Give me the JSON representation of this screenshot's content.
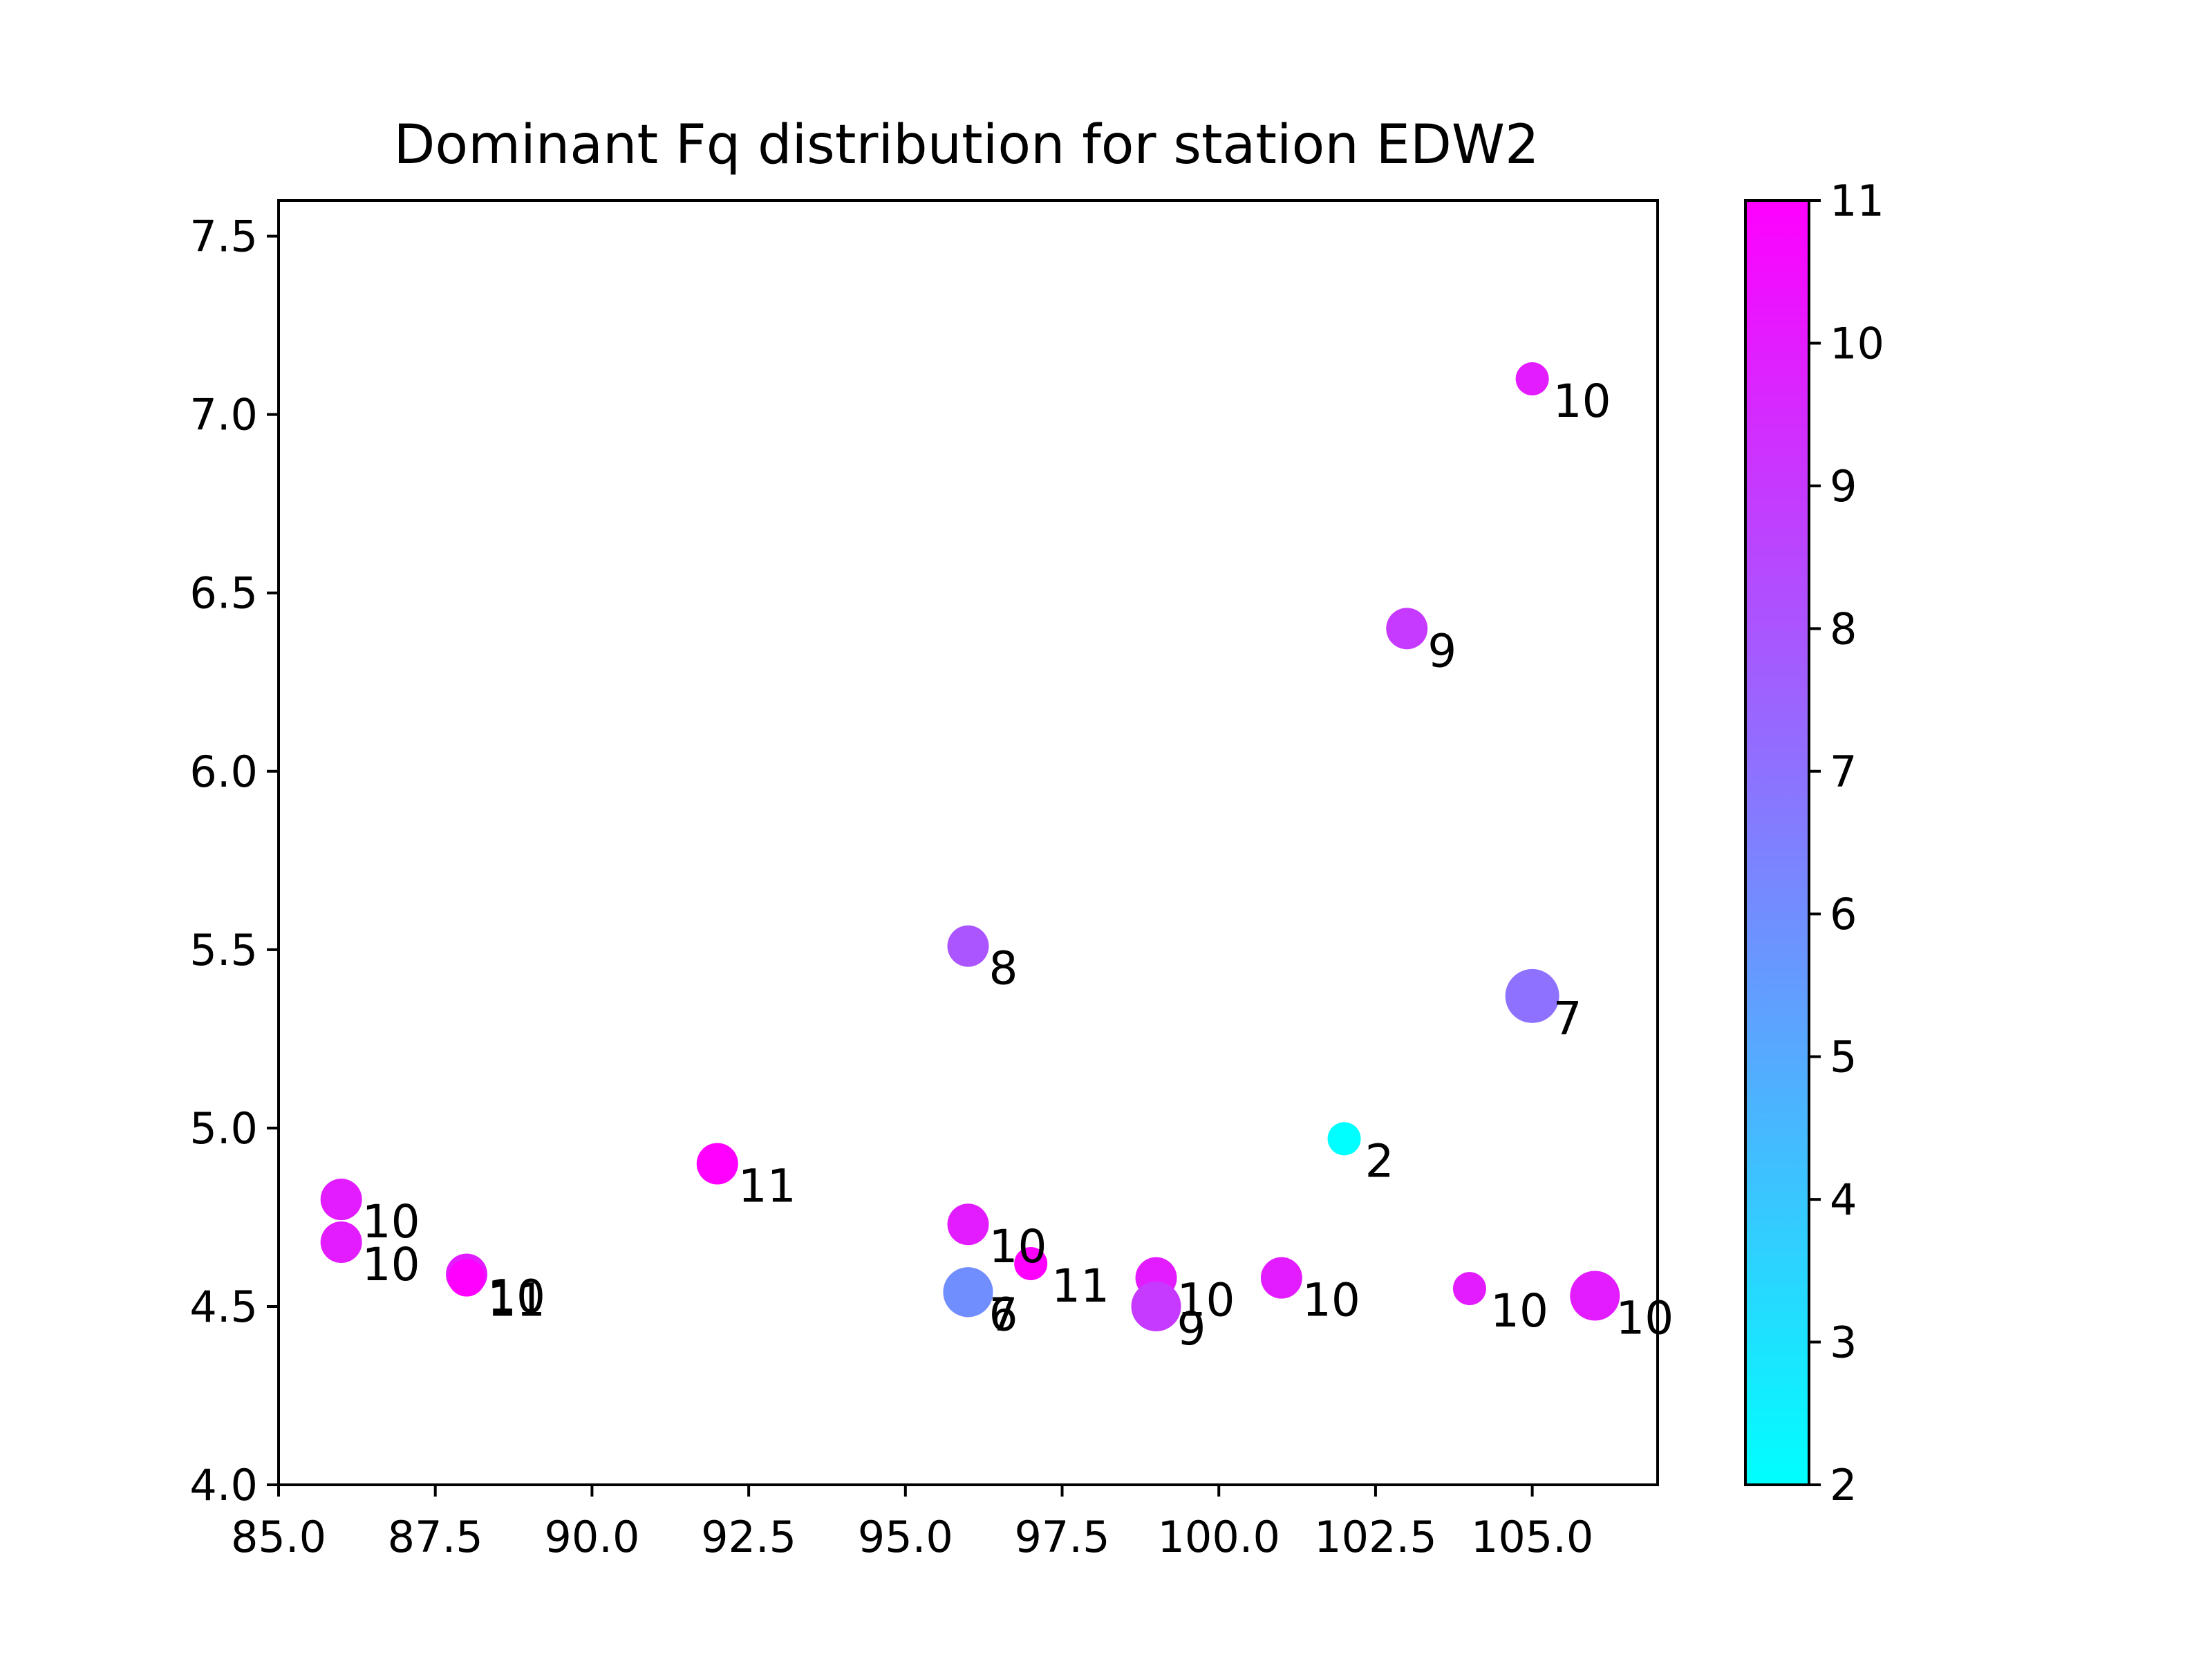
{
  "chart_data": {
    "type": "scatter",
    "title": "Dominant Fq distribution for station EDW2",
    "xlabel": "",
    "ylabel": "",
    "xlim": [
      85.0,
      107.0
    ],
    "ylim": [
      4.0,
      7.6
    ],
    "xticks": [
      85.0,
      87.5,
      90.0,
      92.5,
      95.0,
      97.5,
      100.0,
      102.5,
      105.0
    ],
    "xtick_labels": [
      "85.0",
      "87.5",
      "90.0",
      "92.5",
      "95.0",
      "97.5",
      "100.0",
      "102.5",
      "105.0"
    ],
    "yticks": [
      4.0,
      4.5,
      5.0,
      5.5,
      6.0,
      6.5,
      7.0,
      7.5
    ],
    "ytick_labels": [
      "4.0",
      "4.5",
      "5.0",
      "5.5",
      "6.0",
      "6.5",
      "7.0",
      "7.5"
    ],
    "grid": false,
    "colorbar": {
      "colormap": "cool",
      "range": [
        2,
        11
      ],
      "ticks": [
        2,
        3,
        4,
        5,
        6,
        7,
        8,
        9,
        10,
        11
      ],
      "tick_labels": [
        "2",
        "3",
        "4",
        "5",
        "6",
        "7",
        "8",
        "9",
        "10",
        "11"
      ],
      "low_color": "#00ffff",
      "high_color": "#ff00ff"
    },
    "points": [
      {
        "x": 105.0,
        "y": 7.1,
        "value": 10,
        "label": "10",
        "size": 0.8
      },
      {
        "x": 103.0,
        "y": 6.4,
        "value": 9,
        "label": "9",
        "size": 1.0
      },
      {
        "x": 96.0,
        "y": 5.51,
        "value": 8,
        "label": "8",
        "size": 1.0
      },
      {
        "x": 105.0,
        "y": 5.37,
        "value": 7,
        "label": "7",
        "size": 1.3
      },
      {
        "x": 102.0,
        "y": 4.97,
        "value": 2,
        "label": "2",
        "size": 0.8
      },
      {
        "x": 92.0,
        "y": 4.9,
        "value": 11,
        "label": "11",
        "size": 1.0
      },
      {
        "x": 86.0,
        "y": 4.8,
        "value": 10,
        "label": "10",
        "size": 1.0
      },
      {
        "x": 86.0,
        "y": 4.68,
        "value": 10,
        "label": "10",
        "size": 1.0
      },
      {
        "x": 96.0,
        "y": 4.73,
        "value": 10,
        "label": "10",
        "size": 1.0
      },
      {
        "x": 97.0,
        "y": 4.62,
        "value": 11,
        "label": "11",
        "size": 0.8
      },
      {
        "x": 88.0,
        "y": 4.59,
        "value": 10,
        "label": "10",
        "size": 1.0
      },
      {
        "x": 88.0,
        "y": 4.58,
        "value": 11,
        "label": "11",
        "size": 0.9
      },
      {
        "x": 96.0,
        "y": 4.54,
        "value": 7,
        "label": "7",
        "size": 1.2
      },
      {
        "x": 96.0,
        "y": 4.54,
        "value": 6,
        "label": "6",
        "size": 1.2
      },
      {
        "x": 99.0,
        "y": 4.58,
        "value": 10,
        "label": "10",
        "size": 1.0
      },
      {
        "x": 99.0,
        "y": 4.5,
        "value": 9,
        "label": "9",
        "size": 1.2
      },
      {
        "x": 101.0,
        "y": 4.58,
        "value": 10,
        "label": "10",
        "size": 1.0
      },
      {
        "x": 104.0,
        "y": 4.55,
        "value": 10,
        "label": "10",
        "size": 0.8
      },
      {
        "x": 106.0,
        "y": 4.53,
        "value": 10,
        "label": "10",
        "size": 1.2
      }
    ]
  }
}
